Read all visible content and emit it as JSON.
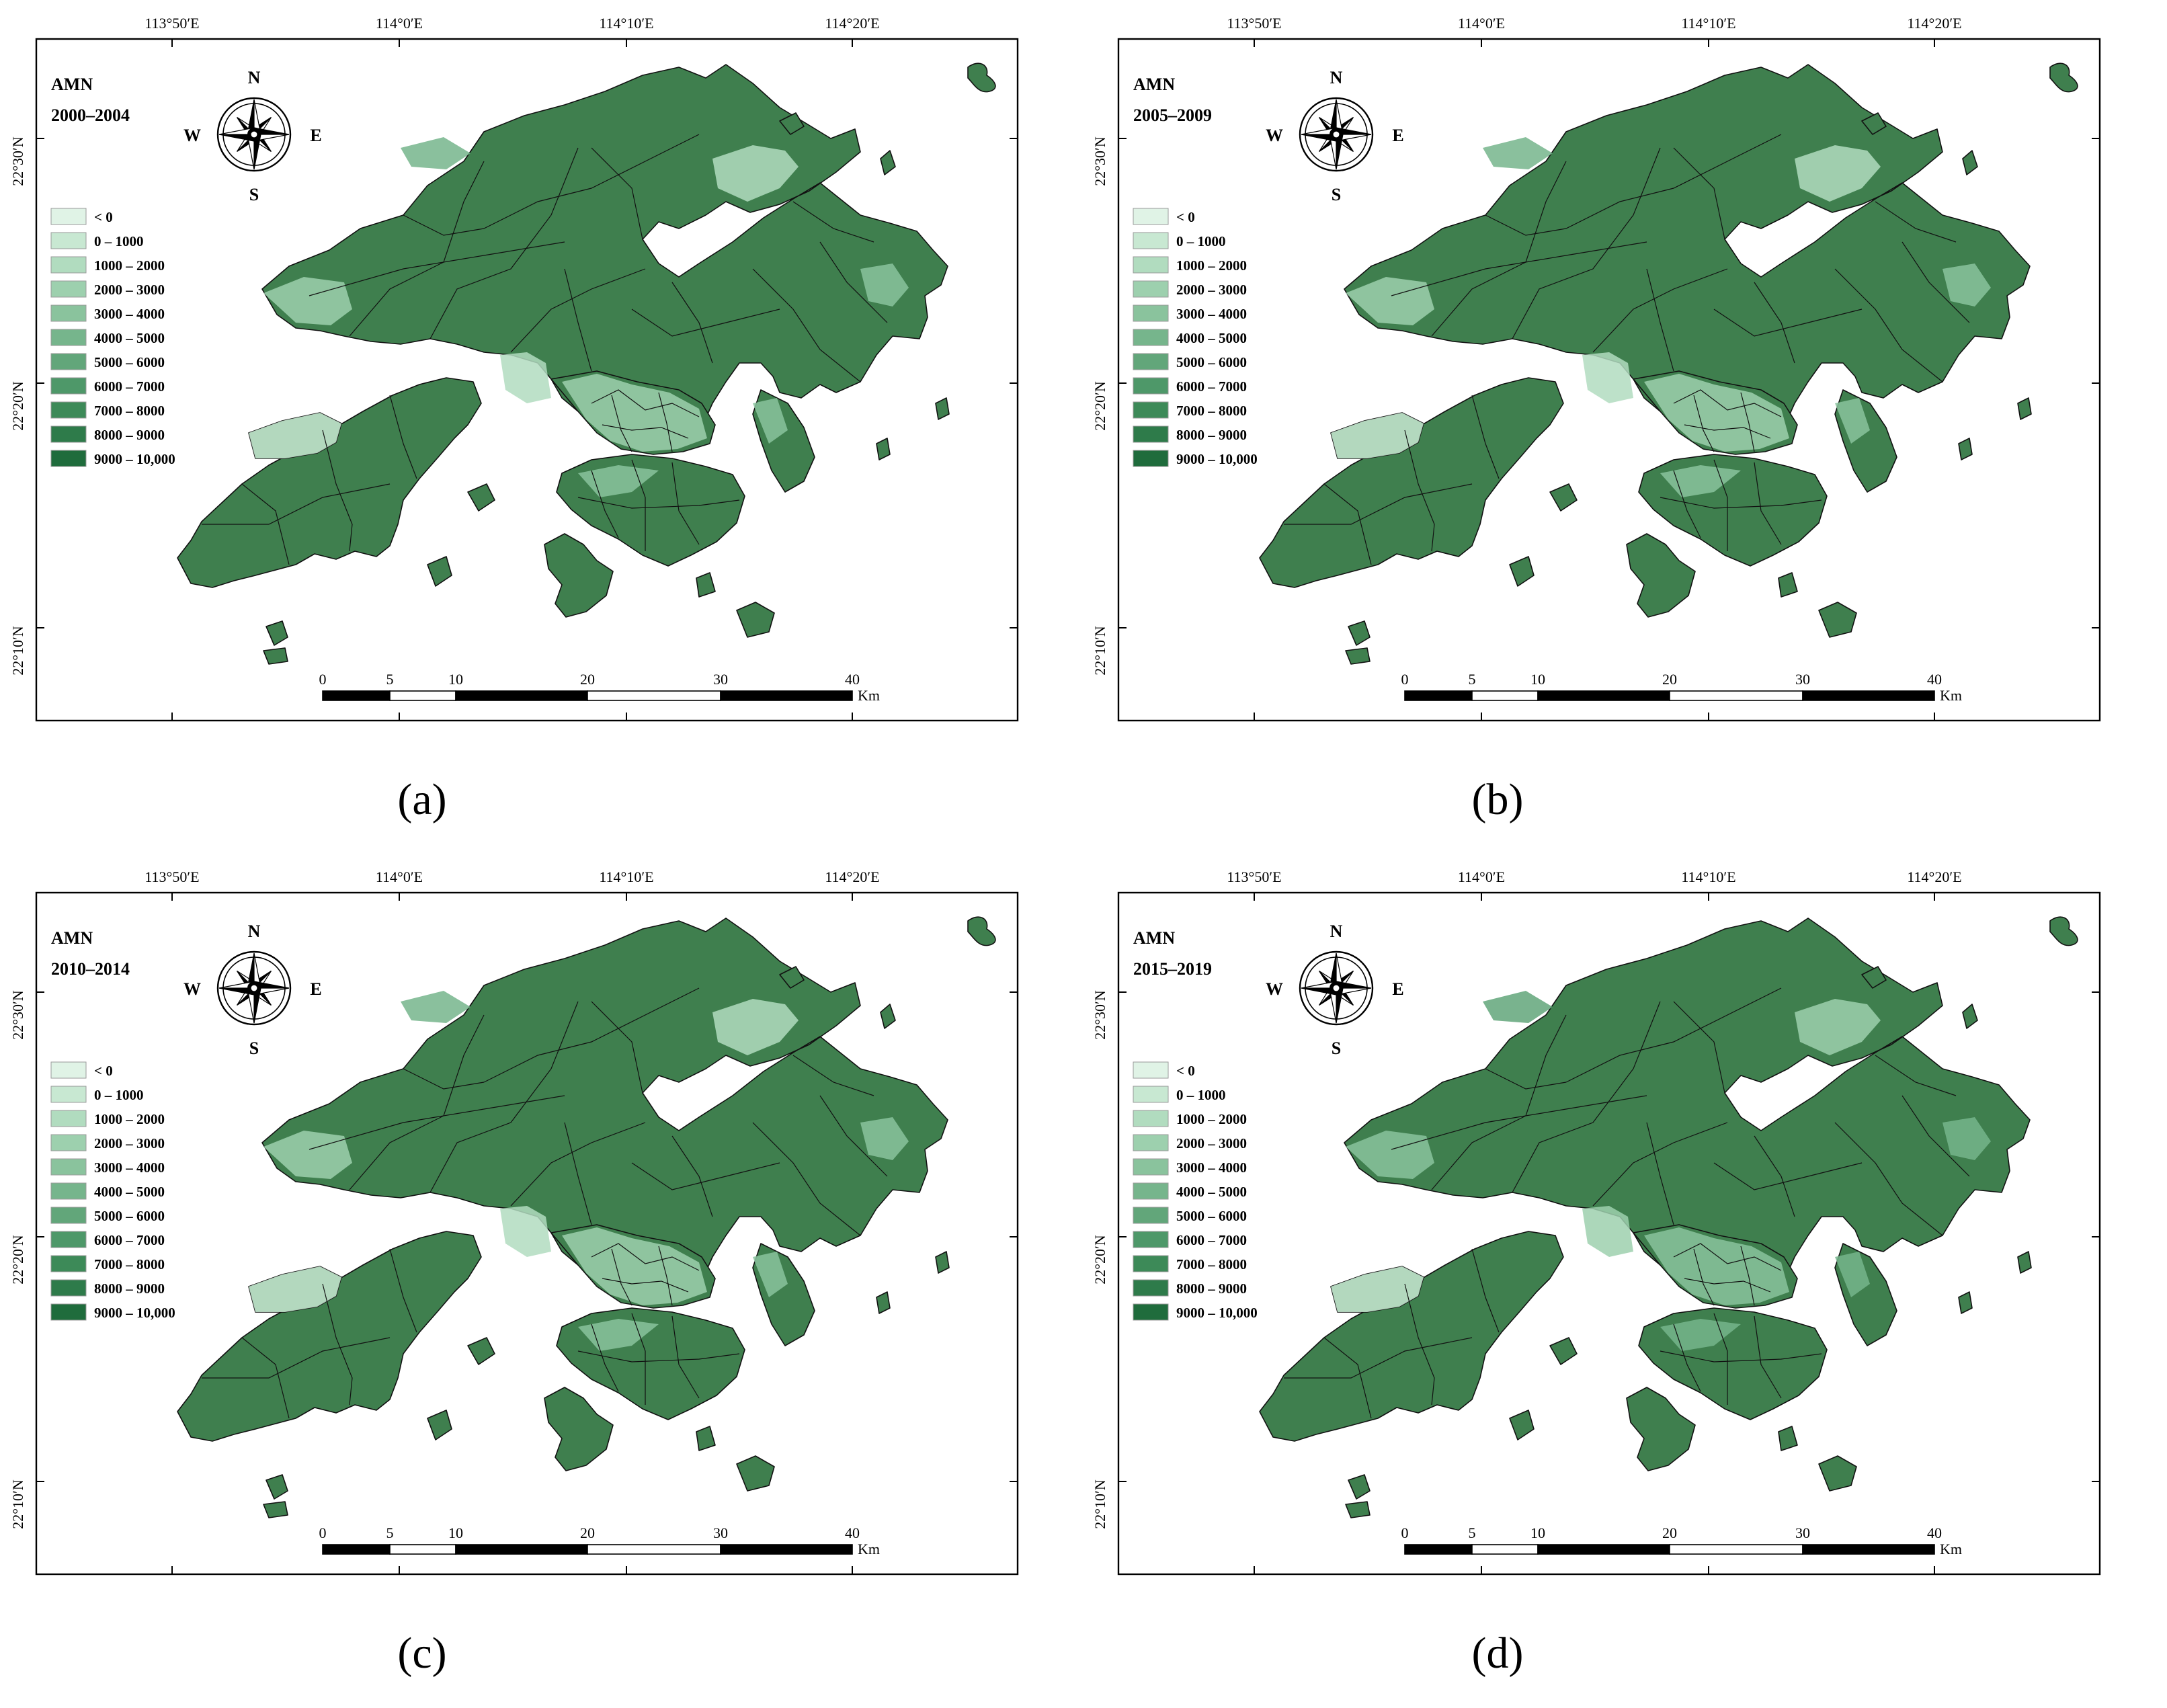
{
  "colors": {
    "frame": "#000000",
    "boundary": "#111111",
    "land_base": "#3f7f4e",
    "legend": [
      "#e0f3e6",
      "#c8e8d2",
      "#b1dcbf",
      "#9dd0ae",
      "#8ac39d",
      "#76b58c",
      "#62a67a",
      "#4e9869",
      "#3d8a58",
      "#2e7b4a",
      "#1f6c3c"
    ]
  },
  "lon_ticks": [
    "113°50′E",
    "114°0′E",
    "114°10′E",
    "114°20′E"
  ],
  "lat_ticks": [
    "22°30′N",
    "22°20′N",
    "22°10′N"
  ],
  "legend_classes": [
    "< 0",
    "0 – 1000",
    "1000 – 2000",
    "2000 – 3000",
    "3000 – 4000",
    "4000 – 5000",
    "5000 – 6000",
    "6000 – 7000",
    "7000 – 8000",
    "8000 – 9000",
    "9000 – 10,000"
  ],
  "compass": {
    "n": "N",
    "s": "S",
    "e": "E",
    "w": "W"
  },
  "scale_bar": {
    "ticks": [
      "0",
      "5",
      "10",
      "20",
      "30",
      "40"
    ],
    "unit": "Km"
  },
  "panels": [
    {
      "label": "(a)",
      "title": "AMN",
      "period": "2000–2004"
    },
    {
      "label": "(b)",
      "title": "AMN",
      "period": "2005–2009"
    },
    {
      "label": "(c)",
      "title": "AMN",
      "period": "2010–2014"
    },
    {
      "label": "(d)",
      "title": "AMN",
      "period": "2015–2019"
    }
  ]
}
